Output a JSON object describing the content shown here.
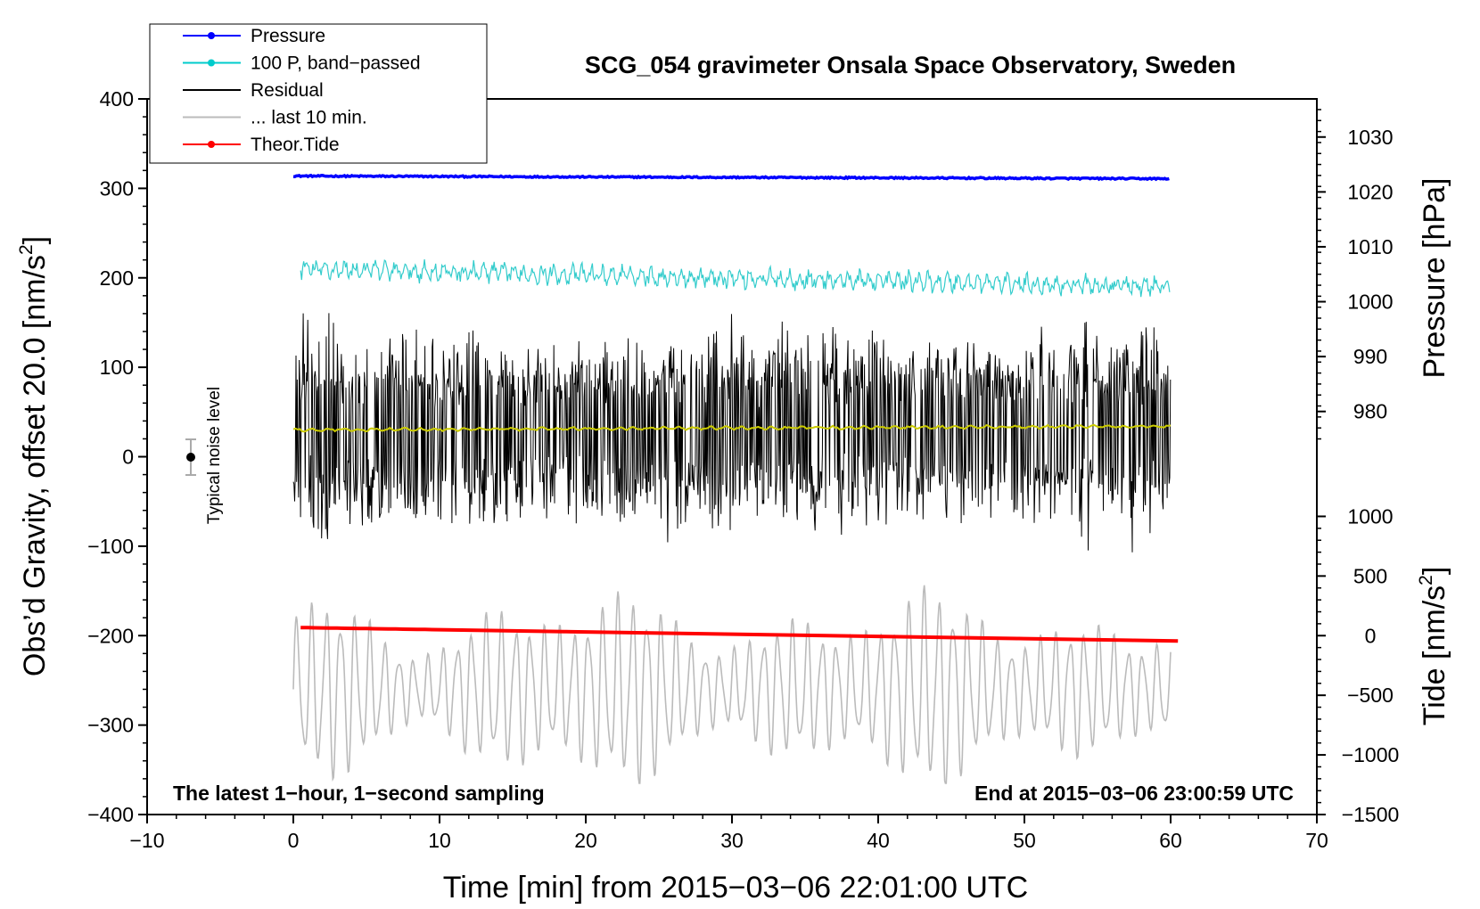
{
  "chart_data": {
    "type": "line",
    "title": "SCG_054 gravimeter Onsala Space Observatory, Sweden",
    "xlabel": "Time [min] from 2015−03−06 22:01:00 UTC",
    "ylabel": "Obs’d Gravity, offset 20.0 [nm/s²]",
    "ylabel_parts": {
      "main": "Obs’d Gravity, offset 20.0 [nm/s",
      "sup": "2",
      "end": "]"
    },
    "y2label": "Pressure [hPa]",
    "y3label_parts": {
      "main": "Tide [nm/s",
      "sup": "2",
      "end": "]"
    },
    "xlim": [
      -10,
      70
    ],
    "ylim": [
      -400,
      400
    ],
    "x_ticks": [
      -10,
      0,
      10,
      20,
      30,
      40,
      50,
      60,
      70
    ],
    "x_tick_labels": [
      "−10",
      "0",
      "10",
      "20",
      "30",
      "40",
      "50",
      "60",
      "70"
    ],
    "y_ticks": [
      400,
      300,
      200,
      100,
      0,
      -100,
      -200,
      -300,
      -400
    ],
    "y_tick_labels": [
      "400",
      "300",
      "200",
      "100",
      "0",
      "−100",
      "−200",
      "−300",
      "−400"
    ],
    "pressure_axis": {
      "ticks": [
        1030,
        1020,
        1010,
        1000,
        990,
        980
      ],
      "tick_labels": [
        "1030",
        "1020",
        "1010",
        "1000",
        "990",
        "980"
      ],
      "map": {
        "hpa_a": 980,
        "y_a": 50.6,
        "hpa_b": 1030,
        "y_b": 357.4
      }
    },
    "tide_axis": {
      "ticks": [
        1000,
        500,
        0,
        -500,
        -1000,
        -1500
      ],
      "tick_labels": [
        "1000",
        "500",
        "0",
        "−500",
        "−1000",
        "−1500"
      ],
      "map": {
        "tide_a": 1000,
        "y_a": -66.7,
        "tide_b": -1500,
        "y_b": -400
      }
    },
    "legend": [
      {
        "label": "Pressure",
        "color": "#0000ff",
        "marker": true
      },
      {
        "label": "100 P, band−passed",
        "color": "#00cccc",
        "marker": true
      },
      {
        "label": "Residual",
        "color": "#000000",
        "marker": false
      },
      {
        "label": "... last 10 min.",
        "color": "#bbbbbb",
        "marker": false
      },
      {
        "label": "Theor.Tide",
        "color": "#ff0000",
        "marker": true
      }
    ],
    "series": [
      {
        "name": "Pressure",
        "color": "#0000ff",
        "unit": "hPa",
        "x_range": [
          0,
          60
        ],
        "start": 1022.9,
        "end": 1022.4,
        "noise": 0.25
      },
      {
        "name": "100 P, band−passed",
        "color": "#33cccc",
        "unit": "nm/s²",
        "x_range": [
          0.5,
          60
        ],
        "start": 210,
        "end": 190,
        "amplitude": 12
      },
      {
        "name": "Residual",
        "color": "#000000",
        "unit": "nm/s²",
        "x_range": [
          0,
          60
        ],
        "center": 30,
        "amplitude_range": [
          60,
          150
        ],
        "min": -115,
        "max": 185
      },
      {
        "name": "Residual smoothed",
        "color": "#cccc00",
        "unit": "nm/s²",
        "x_range": [
          0,
          60
        ],
        "start": 30,
        "end": 34
      },
      {
        "name": "... last 10 min.",
        "color": "#bbbbbb",
        "unit": "nm/s²",
        "x_range": [
          0,
          60
        ],
        "center": -260,
        "amplitude_range": [
          30,
          95
        ],
        "min": -365,
        "max": -125
      },
      {
        "name": "Theor.Tide",
        "color": "#ff0000",
        "unit": "nm/s²",
        "x_range": [
          0.5,
          60.5
        ],
        "start": -191,
        "end": -206
      }
    ],
    "noise_indicator": {
      "label": "Typical noise level",
      "x": -7,
      "y": 0,
      "error": 20
    },
    "annotation_left": "The latest 1−hour, 1−second sampling",
    "annotation_right": "End at 2015−03−06 23:00:59 UTC",
    "grid": false,
    "legend_position": "top-left"
  }
}
